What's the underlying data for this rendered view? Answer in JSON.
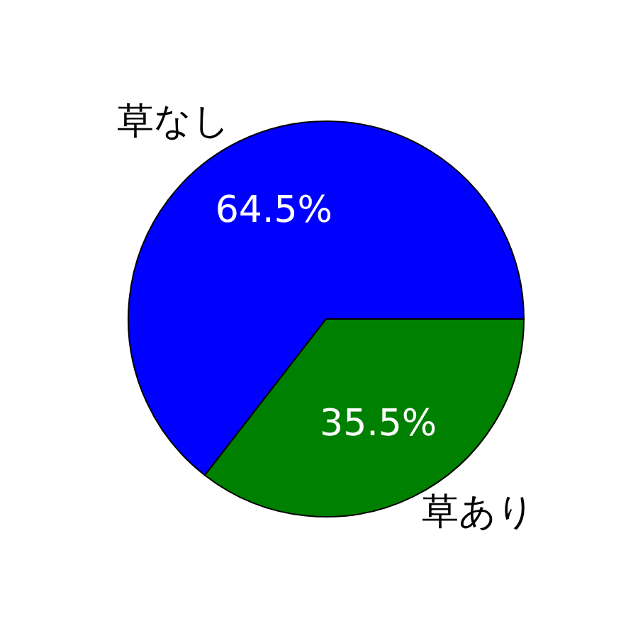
{
  "chart_data": {
    "type": "pie",
    "categories": [
      "草なし",
      "草あり"
    ],
    "values": [
      64.5,
      35.5
    ],
    "colors": [
      "#0000ff",
      "#008000"
    ],
    "value_labels": [
      "64.5%",
      "35.5%"
    ]
  }
}
